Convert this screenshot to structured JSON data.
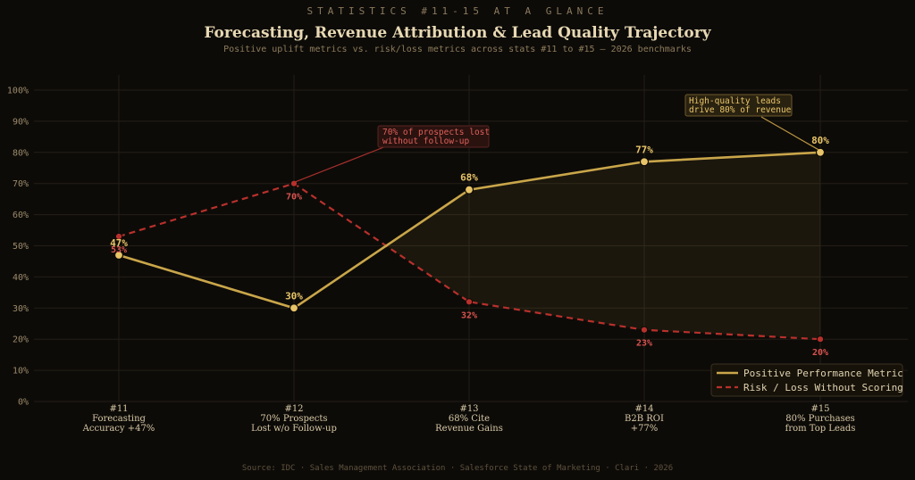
{
  "header": {
    "eyebrow": "STATISTICS #11-15 AT A GLANCE",
    "title": "Forecasting, Revenue Attribution & Lead Quality Trajectory",
    "subtitle": "Positive uplift metrics vs. risk/loss metrics across stats #11 to #15 — 2026 benchmarks"
  },
  "footer": {
    "source": "Source: IDC · Sales Management Association · Salesforce State of Marketing · Clari · 2026"
  },
  "colors": {
    "positive": "#c9a64a",
    "negative": "#b8302c",
    "grid": "#231e16"
  },
  "chart_data": {
    "type": "line",
    "title": "Forecasting, Revenue Attribution & Lead Quality Trajectory",
    "subtitle": "Positive uplift metrics vs. risk/loss metrics across stats #11 to #15 — 2026 benchmarks",
    "categories": [
      [
        "#11",
        "Forecasting",
        "Accuracy +47%"
      ],
      [
        "#12",
        "70% Prospects",
        "Lost w/o Follow-up"
      ],
      [
        "#13",
        "68% Cite",
        "Revenue Gains"
      ],
      [
        "#14",
        "B2B ROI",
        "+77%"
      ],
      [
        "#15",
        "80% Purchases",
        "from Top Leads"
      ]
    ],
    "series": [
      {
        "name": "Positive Performance Metric",
        "values": [
          47,
          30,
          68,
          77,
          80
        ],
        "labels": [
          "47%",
          "30%",
          "68%",
          "77%",
          "80%"
        ],
        "style": "solid"
      },
      {
        "name": "Risk / Loss Without Scoring",
        "values": [
          53,
          70,
          32,
          23,
          20
        ],
        "labels": [
          "53%",
          "70%",
          "32%",
          "23%",
          "20%"
        ],
        "style": "dashed"
      }
    ],
    "ylim": [
      0,
      100
    ],
    "yticks": [
      "0%",
      "10%",
      "20%",
      "30%",
      "40%",
      "50%",
      "60%",
      "70%",
      "80%",
      "90%",
      "100%"
    ],
    "grid": true,
    "legend": "bottom-right",
    "annotations": [
      {
        "lines": [
          "70% of prospects lost",
          "without follow-up"
        ],
        "target_series": 1,
        "target_index": 1
      },
      {
        "lines": [
          "High-quality leads",
          "drive 80% of revenue"
        ],
        "target_series": 0,
        "target_index": 4
      }
    ]
  }
}
